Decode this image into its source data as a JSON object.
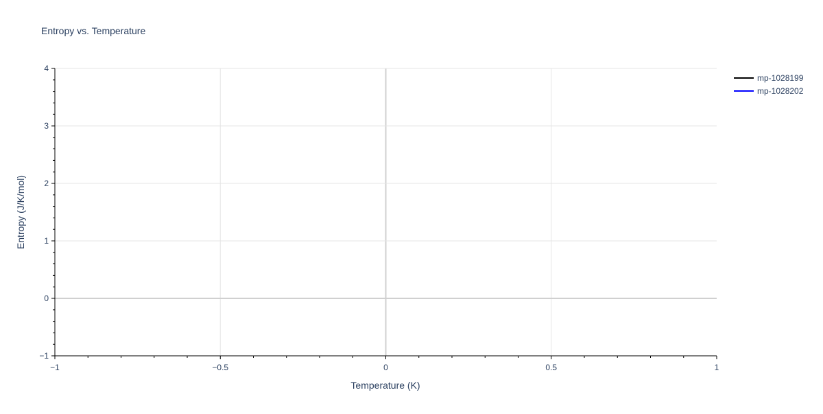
{
  "chart_data": {
    "type": "line",
    "title": "Entropy vs. Temperature",
    "xlabel": "Temperature (K)",
    "ylabel": "Entropy (J/K/mol)",
    "xlim": [
      -1,
      1
    ],
    "ylim": [
      -1,
      4
    ],
    "x_ticks": [
      -1,
      -0.5,
      0,
      0.5,
      1
    ],
    "x_tick_labels": [
      "−1",
      "−0.5",
      "0",
      "0.5",
      "1"
    ],
    "y_ticks": [
      -1,
      0,
      1,
      2,
      3,
      4
    ],
    "y_tick_labels": [
      "−1",
      "0",
      "1",
      "2",
      "3",
      "4"
    ],
    "grid": true,
    "legend_placement": "top-right",
    "series": [
      {
        "name": "mp-1028199",
        "color": "#000000",
        "x": [],
        "y": []
      },
      {
        "name": "mp-1028202",
        "color": "#0000ff",
        "x": [],
        "y": []
      }
    ]
  }
}
